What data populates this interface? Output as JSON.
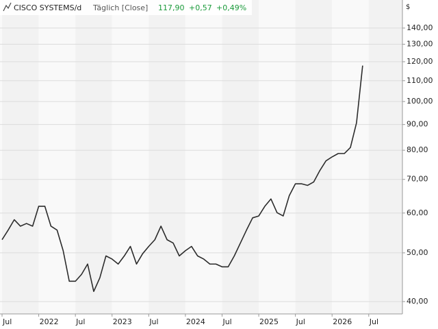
{
  "chart_data": {
    "type": "line",
    "title": "CISCO SYSTEMS/d",
    "subtitle": "Täglich [Close]",
    "last_price": "117,90",
    "change": "+0,57",
    "change_pct": "+0,49%",
    "currency": "$",
    "log_scale": true,
    "grid": true,
    "x": [
      "2021-07",
      "2021-08",
      "2021-09",
      "2021-10",
      "2021-11",
      "2021-12",
      "2022-01",
      "2022-02",
      "2022-03",
      "2022-04",
      "2022-05",
      "2022-06",
      "2022-07",
      "2022-08",
      "2022-09",
      "2022-10",
      "2022-11",
      "2022-12",
      "2023-01",
      "2023-02",
      "2023-03",
      "2023-04",
      "2023-05",
      "2023-06",
      "2023-07",
      "2023-08",
      "2023-09",
      "2023-10",
      "2023-11",
      "2023-12",
      "2024-01",
      "2024-02",
      "2024-03",
      "2024-04",
      "2024-05",
      "2024-06",
      "2024-07",
      "2024-08",
      "2024-09",
      "2024-10",
      "2024-11",
      "2024-12",
      "2025-01",
      "2025-02",
      "2025-03",
      "2025-04",
      "2025-05",
      "2025-06",
      "2025-07",
      "2025-08",
      "2025-09",
      "2025-10",
      "2025-11",
      "2025-12",
      "2026-01",
      "2026-02",
      "2026-03",
      "2026-04",
      "2026-05",
      "2026-06"
    ],
    "series": [
      {
        "name": "CISCO SYSTEMS",
        "color": "#2b2b2b",
        "values": [
          53.1,
          55.5,
          58.2,
          56.5,
          57.2,
          56.5,
          61.9,
          61.9,
          56.5,
          55.5,
          50.5,
          43.9,
          43.9,
          45.3,
          47.5,
          41.9,
          44.6,
          49.3,
          48.6,
          47.5,
          49.3,
          51.5,
          47.5,
          49.8,
          51.5,
          53.1,
          56.5,
          53.1,
          52.3,
          49.3,
          50.5,
          51.5,
          49.3,
          48.6,
          47.5,
          47.5,
          46.9,
          46.9,
          49.3,
          52.3,
          55.5,
          58.7,
          59.2,
          61.9,
          64.0,
          60.1,
          59.2,
          65.0,
          68.6,
          68.6,
          68.1,
          69.2,
          72.9,
          76.2,
          77.6,
          78.8,
          78.8,
          81.0,
          90.7,
          117.9
        ]
      }
    ],
    "ylim": [
      37.8,
      159.2
    ],
    "yticks": [
      {
        "value": 40,
        "label": "40,00"
      },
      {
        "value": 50,
        "label": "50,00"
      },
      {
        "value": 60,
        "label": "60,00"
      },
      {
        "value": 70,
        "label": "70,00"
      },
      {
        "value": 80,
        "label": "80,00"
      },
      {
        "value": 90,
        "label": "90,00"
      },
      {
        "value": 100,
        "label": "100,00"
      },
      {
        "value": 110,
        "label": "110,00"
      },
      {
        "value": 120,
        "label": "120,00"
      },
      {
        "value": 130,
        "label": "130,00"
      },
      {
        "value": 140,
        "label": "140,00"
      }
    ],
    "xticks": [
      {
        "value": "2021-07",
        "label": "Jul"
      },
      {
        "value": "2022-01",
        "label": "2022"
      },
      {
        "value": "2022-07",
        "label": "Jul"
      },
      {
        "value": "2023-01",
        "label": "2023"
      },
      {
        "value": "2023-07",
        "label": "Jul"
      },
      {
        "value": "2024-01",
        "label": "2024"
      },
      {
        "value": "2024-07",
        "label": "Jul"
      },
      {
        "value": "2025-01",
        "label": "2025"
      },
      {
        "value": "2025-07",
        "label": "Jul"
      },
      {
        "value": "2026-01",
        "label": "2026"
      },
      {
        "value": "2026-07",
        "label": "Jul"
      }
    ]
  }
}
